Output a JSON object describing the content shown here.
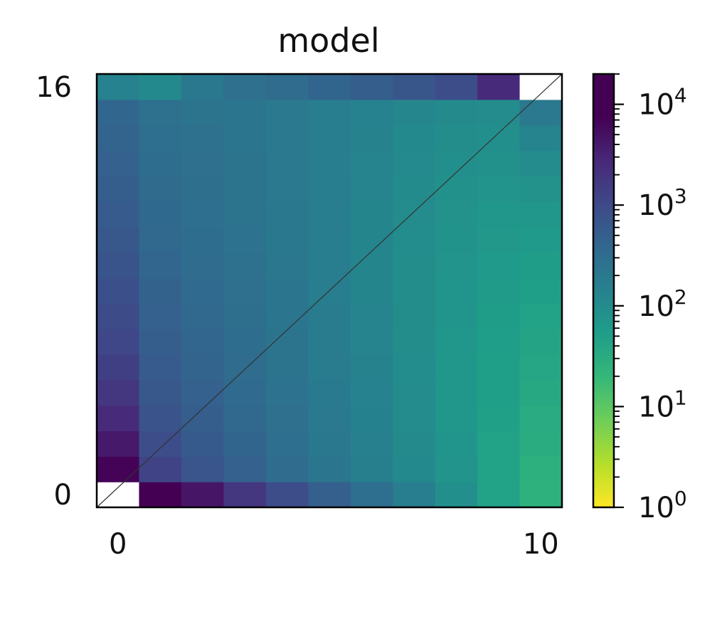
{
  "chart_data": {
    "type": "heatmap",
    "title": "model",
    "x_ticks": [
      "0",
      "10"
    ],
    "y_ticks": [
      "0",
      "16"
    ],
    "x_range": [
      0,
      11
    ],
    "y_range": [
      0,
      17
    ],
    "colorbar": {
      "scale": "log",
      "colormap": "viridis (reversed)",
      "range": [
        1,
        20000
      ],
      "ticks": [
        {
          "base": "10",
          "exp": "0",
          "value": 1
        },
        {
          "base": "10",
          "exp": "1",
          "value": 10
        },
        {
          "base": "10",
          "exp": "2",
          "value": 100
        },
        {
          "base": "10",
          "exp": "3",
          "value": 1000
        },
        {
          "base": "10",
          "exp": "4",
          "value": 10000
        }
      ]
    },
    "diagonal_line": true,
    "grid": false,
    "x_bins": [
      0,
      1,
      2,
      3,
      4,
      5,
      6,
      7,
      8,
      9,
      10
    ],
    "rows": [
      [
        null,
        18000,
        4500,
        1800,
        900,
        500,
        300,
        170,
        90,
        45,
        25
      ],
      [
        7000,
        1200,
        700,
        480,
        330,
        230,
        160,
        110,
        75,
        45,
        27
      ],
      [
        4000,
        900,
        600,
        420,
        300,
        210,
        150,
        105,
        72,
        45,
        30
      ],
      [
        2500,
        750,
        520,
        380,
        280,
        200,
        145,
        100,
        70,
        48,
        32
      ],
      [
        1800,
        650,
        470,
        350,
        260,
        190,
        140,
        100,
        70,
        50,
        35
      ],
      [
        1400,
        580,
        430,
        330,
        250,
        185,
        135,
        98,
        70,
        50,
        38
      ],
      [
        1100,
        520,
        400,
        310,
        240,
        180,
        133,
        97,
        70,
        52,
        42
      ],
      [
        950,
        480,
        370,
        290,
        230,
        175,
        130,
        96,
        72,
        55,
        45
      ],
      [
        820,
        440,
        350,
        280,
        220,
        170,
        128,
        96,
        73,
        58,
        50
      ],
      [
        720,
        410,
        330,
        270,
        215,
        168,
        128,
        97,
        75,
        60,
        55
      ],
      [
        640,
        380,
        310,
        260,
        210,
        165,
        128,
        98,
        78,
        65,
        60
      ],
      [
        580,
        360,
        300,
        250,
        205,
        163,
        128,
        100,
        80,
        70,
        70
      ],
      [
        520,
        340,
        290,
        245,
        200,
        162,
        130,
        102,
        85,
        75,
        80
      ],
      [
        470,
        320,
        280,
        240,
        200,
        163,
        132,
        106,
        90,
        82,
        100
      ],
      [
        430,
        300,
        270,
        235,
        200,
        165,
        135,
        110,
        95,
        90,
        130
      ],
      [
        390,
        270,
        250,
        225,
        200,
        170,
        142,
        118,
        105,
        100,
        200
      ],
      [
        140,
        110,
        210,
        280,
        330,
        420,
        520,
        680,
        900,
        2500,
        null
      ]
    ]
  }
}
